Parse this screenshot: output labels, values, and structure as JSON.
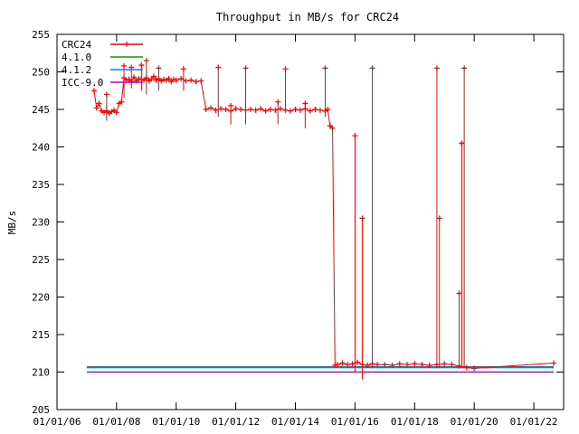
{
  "chart_data": {
    "type": "line",
    "title": "Throughput in MB/s for CRC24",
    "xlabel": "",
    "ylabel": "MB/s",
    "xlim": [
      "2006-01-01",
      "2023-01-01"
    ],
    "ylim": [
      205,
      255
    ],
    "xticks": [
      "01/01/06",
      "01/01/08",
      "01/01/10",
      "01/01/12",
      "01/01/14",
      "01/01/16",
      "01/01/18",
      "01/01/20",
      "01/01/22"
    ],
    "yticks": [
      205,
      210,
      215,
      220,
      225,
      230,
      235,
      240,
      245,
      250,
      255
    ],
    "grid": false,
    "legend_position": "top-left",
    "series": [
      {
        "name": "CRC24",
        "color": "#ff0000",
        "marker": "plus",
        "x": [
          "2007-04-01",
          "2007-05-01",
          "2007-06-01",
          "2007-07-01",
          "2007-08-01",
          "2007-09-01",
          "2007-10-01",
          "2007-11-01",
          "2007-12-01",
          "2008-01-01",
          "2008-02-01",
          "2008-03-01",
          "2008-04-01",
          "2008-05-01",
          "2008-06-01",
          "2008-07-01",
          "2008-08-01",
          "2008-09-01",
          "2008-10-01",
          "2008-11-01",
          "2008-12-01",
          "2009-01-01",
          "2009-02-01",
          "2009-03-01",
          "2009-04-01",
          "2009-05-01",
          "2009-06-01",
          "2009-07-01",
          "2009-08-01",
          "2009-09-01",
          "2009-10-01",
          "2009-11-01",
          "2009-12-01",
          "2010-01-01",
          "2010-03-01",
          "2010-05-01",
          "2010-07-01",
          "2010-09-01",
          "2010-11-01",
          "2011-01-01",
          "2011-03-01",
          "2011-05-01",
          "2011-07-01",
          "2011-09-01",
          "2011-11-01",
          "2012-01-01",
          "2012-03-01",
          "2012-05-01",
          "2012-07-01",
          "2012-09-01",
          "2012-11-01",
          "2013-01-01",
          "2013-03-01",
          "2013-05-01",
          "2013-07-01",
          "2013-09-01",
          "2013-11-01",
          "2014-01-01",
          "2014-03-01",
          "2014-05-01",
          "2014-07-01",
          "2014-09-01",
          "2014-11-01",
          "2015-01-01",
          "2015-02-01",
          "2015-03-01",
          "2015-04-01",
          "2015-05-01",
          "2015-06-01",
          "2015-08-01",
          "2015-10-01",
          "2015-12-01",
          "2016-02-01",
          "2016-04-01",
          "2016-06-01",
          "2016-08-01",
          "2016-10-01",
          "2017-01-01",
          "2017-04-01",
          "2017-07-01",
          "2017-10-01",
          "2018-01-01",
          "2018-04-01",
          "2018-07-01",
          "2018-10-01",
          "2019-01-01",
          "2019-04-01",
          "2019-07-01",
          "2019-10-01",
          "2020-01-01",
          "2022-09-01"
        ],
        "y": [
          247.5,
          245.2,
          245.8,
          244.8,
          244.6,
          244.8,
          244.5,
          244.7,
          244.9,
          244.6,
          245.8,
          246.0,
          249.2,
          248.9,
          249.0,
          248.7,
          249.3,
          248.8,
          249.1,
          249.0,
          248.9,
          249.2,
          248.8,
          249.0,
          249.4,
          248.9,
          249.1,
          248.8,
          249.0,
          248.9,
          249.1,
          248.7,
          249.0,
          248.9,
          249.1,
          248.8,
          248.9,
          248.7,
          248.8,
          245.0,
          245.2,
          244.9,
          245.1,
          245.0,
          244.8,
          245.1,
          245.0,
          244.9,
          245.0,
          244.9,
          245.1,
          244.8,
          245.0,
          244.9,
          245.1,
          244.9,
          244.8,
          245.0,
          244.9,
          245.1,
          244.8,
          245.0,
          244.9,
          244.8,
          245.0,
          242.8,
          242.5,
          210.9,
          211.0,
          211.2,
          211.0,
          211.1,
          211.3,
          211.0,
          210.9,
          211.1,
          211.0,
          211.0,
          210.9,
          211.1,
          211.0,
          211.1,
          211.0,
          210.9,
          211.0,
          211.1,
          211.0,
          210.8,
          210.6,
          210.5,
          211.2
        ]
      },
      {
        "name": "4.1.0",
        "color": "#00a000",
        "x": [
          "2007-01-01",
          "2022-09-01"
        ],
        "y": [
          210.7,
          210.7
        ]
      },
      {
        "name": "4.1.2",
        "color": "#0080ff",
        "x": [
          "2007-01-01",
          "2022-09-01"
        ],
        "y": [
          210.6,
          210.6
        ]
      },
      {
        "name": "ICC-9.0",
        "color": "#c000c0",
        "x": [
          "2007-01-01",
          "2022-09-01"
        ],
        "y": [
          210.0,
          210.0
        ]
      }
    ],
    "spikes": [
      {
        "x": "2007-09-01",
        "low": 243.5,
        "high": 247.0
      },
      {
        "x": "2008-04-01",
        "low": 246.5,
        "high": 250.8
      },
      {
        "x": "2008-07-01",
        "low": 247.8,
        "high": 250.6
      },
      {
        "x": "2008-11-01",
        "low": 247.5,
        "high": 250.9
      },
      {
        "x": "2009-01-01",
        "low": 247.0,
        "high": 251.5
      },
      {
        "x": "2009-06-01",
        "low": 247.5,
        "high": 250.5
      },
      {
        "x": "2010-04-01",
        "low": 247.5,
        "high": 250.4
      },
      {
        "x": "2011-06-01",
        "low": 244.0,
        "high": 250.6
      },
      {
        "x": "2011-11-01",
        "low": 243.0,
        "high": 245.5
      },
      {
        "x": "2012-05-01",
        "low": 243.0,
        "high": 250.5
      },
      {
        "x": "2013-06-01",
        "low": 243.0,
        "high": 246.0
      },
      {
        "x": "2013-09-01",
        "low": 245.0,
        "high": 250.4
      },
      {
        "x": "2014-05-01",
        "low": 242.5,
        "high": 245.8
      },
      {
        "x": "2015-01-01",
        "low": 244.0,
        "high": 250.5
      },
      {
        "x": "2016-01-01",
        "low": 210.0,
        "high": 241.5
      },
      {
        "x": "2016-04-01",
        "low": 209.0,
        "high": 230.5
      },
      {
        "x": "2016-08-01",
        "low": 210.5,
        "high": 250.5
      },
      {
        "x": "2018-10-01",
        "low": 210.5,
        "high": 250.5
      },
      {
        "x": "2018-11-01",
        "low": 210.5,
        "high": 230.5
      },
      {
        "x": "2019-09-01",
        "low": 210.5,
        "high": 250.5
      },
      {
        "x": "2019-08-01",
        "low": 210.5,
        "high": 240.5
      },
      {
        "x": "2019-07-01",
        "low": 210.5,
        "high": 220.5
      }
    ]
  }
}
